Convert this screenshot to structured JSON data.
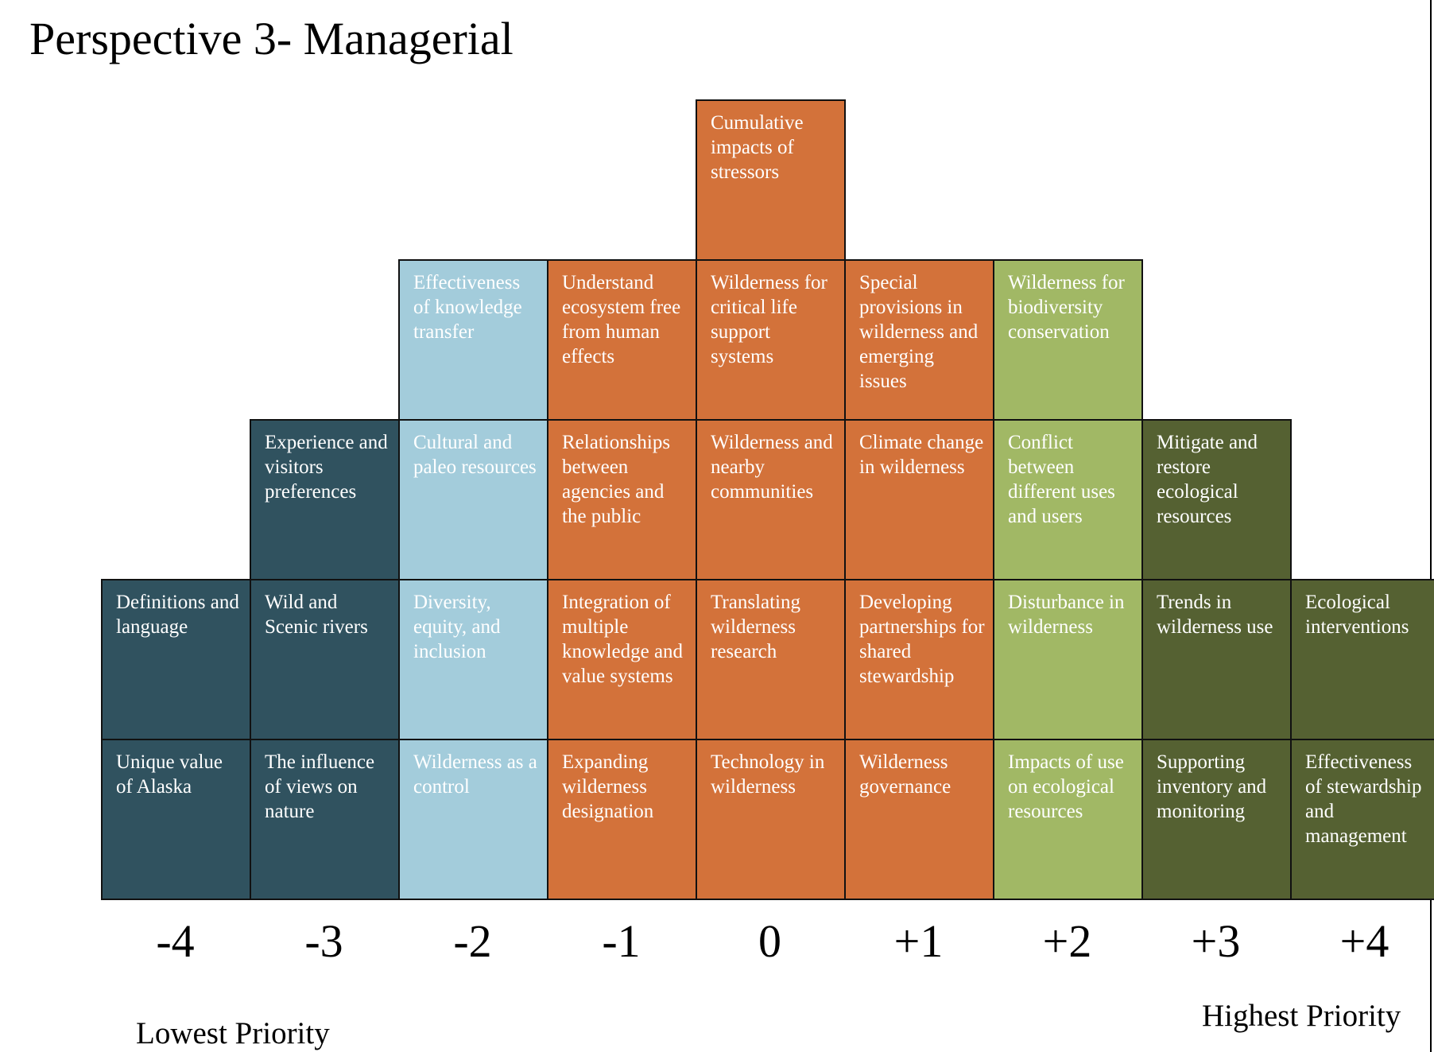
{
  "title": "Perspective 3- Managerial",
  "colors": {
    "dark_blue": "#30525F",
    "light_blue": "#A3CCDB",
    "orange": "#D3723A",
    "light_green": "#A1B865",
    "dark_green": "#556132"
  },
  "scores": [
    "-4",
    "-3",
    "-2",
    "-1",
    "0",
    "+1",
    "+2",
    "+3",
    "+4"
  ],
  "low_priority_label": "Lowest Priority",
  "high_priority_label": "Highest Priority",
  "columns": [
    {
      "score": "-4",
      "items": [
        {
          "text": "Definitions and language",
          "color": "dark_blue"
        },
        {
          "text": "Unique value of Alaska",
          "color": "dark_blue"
        }
      ]
    },
    {
      "score": "-3",
      "items": [
        {
          "text": "Experience and visitors preferences",
          "color": "dark_blue"
        },
        {
          "text": "Wild and Scenic rivers",
          "color": "dark_blue"
        },
        {
          "text": "The influence of views on nature",
          "color": "dark_blue"
        }
      ]
    },
    {
      "score": "-2",
      "items": [
        {
          "text": "Effectiveness of knowledge transfer",
          "color": "light_blue"
        },
        {
          "text": "Cultural and paleo resources",
          "color": "light_blue"
        },
        {
          "text": "Diversity, equity, and inclusion",
          "color": "light_blue"
        },
        {
          "text": "Wilderness as a control",
          "color": "light_blue"
        }
      ]
    },
    {
      "score": "-1",
      "items": [
        {
          "text": "Understand ecosystem free from human effects",
          "color": "orange"
        },
        {
          "text": "Relationships between agencies and the public",
          "color": "orange"
        },
        {
          "text": "Integration of multiple knowledge and value systems",
          "color": "orange"
        },
        {
          "text": "Expanding wilderness designation",
          "color": "orange"
        }
      ]
    },
    {
      "score": "0",
      "items": [
        {
          "text": "Cumulative impacts of stressors",
          "color": "orange"
        },
        {
          "text": "Wilderness for critical life support systems",
          "color": "orange"
        },
        {
          "text": "Wilderness and nearby communities",
          "color": "orange"
        },
        {
          "text": "Translating wilderness research",
          "color": "orange"
        },
        {
          "text": "Technology in wilderness",
          "color": "orange"
        }
      ]
    },
    {
      "score": "+1",
      "items": [
        {
          "text": "Special provisions in wilderness and emerging issues",
          "color": "orange"
        },
        {
          "text": "Climate change in wilderness",
          "color": "orange"
        },
        {
          "text": "Developing partnerships for shared stewardship",
          "color": "orange"
        },
        {
          "text": "Wilderness governance",
          "color": "orange"
        }
      ]
    },
    {
      "score": "+2",
      "items": [
        {
          "text": "Wilderness for biodiversity conservation",
          "color": "light_green"
        },
        {
          "text": "Conflict between different uses and users",
          "color": "light_green"
        },
        {
          "text": "Disturbance in wilderness",
          "color": "light_green"
        },
        {
          "text": "Impacts of use on ecological resources",
          "color": "light_green"
        }
      ]
    },
    {
      "score": "+3",
      "items": [
        {
          "text": "Mitigate and restore ecological resources",
          "color": "dark_green"
        },
        {
          "text": "Trends in wilderness use",
          "color": "dark_green"
        },
        {
          "text": "Supporting inventory and monitoring",
          "color": "dark_green"
        }
      ]
    },
    {
      "score": "+4",
      "items": [
        {
          "text": "Ecological interventions",
          "color": "dark_green"
        },
        {
          "text": "Effectiveness of stewardship and management",
          "color": "dark_green"
        }
      ]
    }
  ]
}
